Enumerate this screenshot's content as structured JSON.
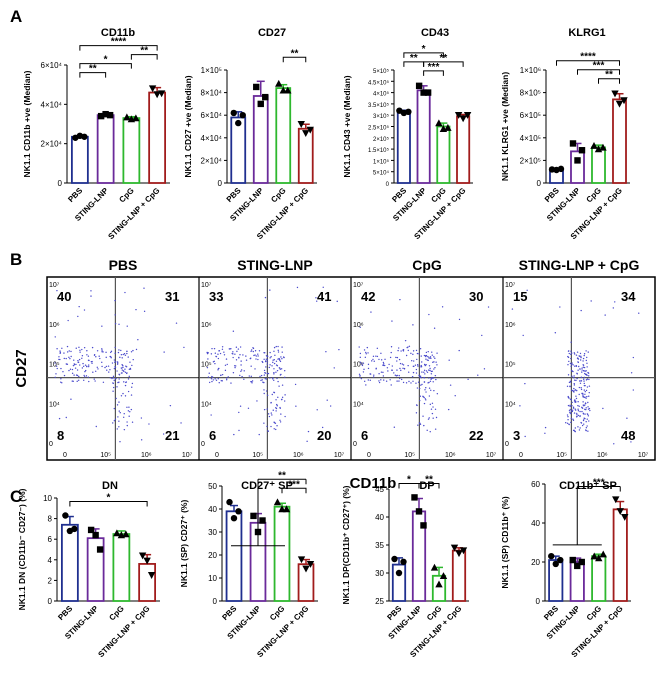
{
  "colors": {
    "PBS": "#1f2f8f",
    "STING-LNP": "#6a2a9a",
    "CpG": "#2eb82e",
    "STING-LNP + CpG": "#a11c1c",
    "dot_quad": "#4a4acc",
    "quad_dark": "#1a2a5a",
    "quad_red": "#a11c1c"
  },
  "groups": [
    "PBS",
    "STING-LNP",
    "CpG",
    "STING-LNP + CpG"
  ],
  "panel_labels": {
    "a": "A",
    "b": "B",
    "c": "C"
  },
  "chart_data": [
    {
      "type": "bar",
      "id": "A1",
      "title": "CD11b",
      "ylabel": "NK1.1 CD11b +ve (Median)",
      "ylim": [
        0,
        60000
      ],
      "ticks": [
        "0",
        "2×10⁴",
        "4×10⁴",
        "6×10⁴"
      ],
      "values": [
        23500,
        34500,
        33000,
        46000
      ],
      "errors": [
        500,
        800,
        700,
        2500
      ],
      "points": [
        [
          23000,
          24000,
          23500
        ],
        [
          34000,
          35000,
          34500
        ],
        [
          33500,
          32500,
          33000
        ],
        [
          48000,
          45000,
          45500
        ]
      ],
      "sig": [
        {
          "a": 0,
          "b": 1,
          "label": "**",
          "level": 1
        },
        {
          "a": 0,
          "b": 2,
          "label": "*",
          "level": 2
        },
        {
          "a": 2,
          "b": 3,
          "label": "**",
          "level": 3
        },
        {
          "a": 0,
          "b": 3,
          "label": "****",
          "level": 4
        }
      ]
    },
    {
      "type": "bar",
      "id": "A2",
      "title": "CD27",
      "ylabel": "NK1.1 CD27 +ve (Median)",
      "ylim": [
        0,
        100000
      ],
      "ticks": [
        "0",
        "2×10⁴",
        "4×10⁴",
        "6×10⁴",
        "8×10⁴",
        "1×10⁵"
      ],
      "values": [
        58000,
        77000,
        84000,
        48000
      ],
      "errors": [
        5000,
        13000,
        3000,
        4000
      ],
      "points": [
        [
          62000,
          53000,
          60000
        ],
        [
          85000,
          70000,
          76000
        ],
        [
          88000,
          82000,
          82000
        ],
        [
          52000,
          44000,
          47000
        ]
      ],
      "sig": [
        {
          "a": 2,
          "b": 3,
          "label": "**",
          "level": 2
        }
      ]
    },
    {
      "type": "bar",
      "id": "A3",
      "title": "CD43",
      "ylabel": "NK1.1 CD43 +ve (Median)",
      "ylim": [
        0,
        500000
      ],
      "ticks": [
        "0",
        "5×10⁴",
        "1×10⁵",
        "1.5×10⁵",
        "2×10⁵",
        "2.5×10⁵",
        "3×10⁵",
        "3.5×10⁵",
        "4×10⁵",
        "4.5×10⁵",
        "5×10⁵"
      ],
      "values": [
        315000,
        410000,
        250000,
        295000
      ],
      "errors": [
        7000,
        20000,
        15000,
        8000
      ],
      "points": [
        [
          320000,
          310000,
          315000
        ],
        [
          430000,
          400000,
          400000
        ],
        [
          265000,
          240000,
          245000
        ],
        [
          300000,
          285000,
          300000
        ]
      ],
      "sig": [
        {
          "a": 1,
          "b": 2,
          "label": "***",
          "level": 1
        },
        {
          "a": 0,
          "b": 1,
          "label": "**",
          "level": 2
        },
        {
          "a": 1,
          "b": 3,
          "label": "**",
          "level": 2
        },
        {
          "a": 0,
          "b": 2,
          "label": "*",
          "level": 3
        }
      ]
    },
    {
      "type": "bar",
      "id": "A4",
      "title": "KLRG1",
      "ylabel": "NK1.1 KLRG1 +ve (Median)",
      "ylim": [
        0,
        1000000
      ],
      "ticks": [
        "0",
        "2×10⁵",
        "4×10⁵",
        "6×10⁵",
        "8×10⁵",
        "1×10⁶"
      ],
      "values": [
        120000,
        280000,
        315000,
        740000
      ],
      "errors": [
        10000,
        70000,
        20000,
        50000
      ],
      "points": [
        [
          120000,
          115000,
          125000
        ],
        [
          350000,
          200000,
          290000
        ],
        [
          330000,
          300000,
          315000
        ],
        [
          790000,
          700000,
          730000
        ]
      ],
      "sig": [
        {
          "a": 2,
          "b": 3,
          "label": "**",
          "level": 1
        },
        {
          "a": 1,
          "b": 3,
          "label": "***",
          "level": 2
        },
        {
          "a": 0,
          "b": 3,
          "label": "****",
          "level": 3
        }
      ]
    },
    {
      "type": "scatter",
      "id": "B",
      "xlabel": "CD11b",
      "ylabel": "CD27",
      "panels": [
        {
          "title": "PBS",
          "q": [
            "40",
            "31",
            "8",
            "21"
          ]
        },
        {
          "title": "STING-LNP",
          "q": [
            "33",
            "41",
            "6",
            "20"
          ]
        },
        {
          "title": "CpG",
          "q": [
            "42",
            "30",
            "6",
            "22"
          ]
        },
        {
          "title": "STING-LNP + CpG",
          "q": [
            "15",
            "34",
            "3",
            "48"
          ]
        }
      ],
      "yticks": [
        "10⁷",
        "10⁶",
        "10⁵",
        "10⁴",
        "0"
      ],
      "xticks": [
        "0",
        "10⁵",
        "10⁶",
        "10⁷"
      ]
    },
    {
      "type": "bar",
      "id": "C1",
      "title": "DN",
      "ylabel": "NK1.1 DN (CD11b⁻ CD27⁻) (%)",
      "ylim": [
        0,
        10
      ],
      "ticks": [
        "0",
        "2",
        "4",
        "6",
        "8",
        "10"
      ],
      "values": [
        7.4,
        6.1,
        6.5,
        3.6
      ],
      "errors": [
        0.8,
        0.9,
        0.3,
        0.9
      ],
      "points": [
        [
          8.3,
          6.8,
          7.0
        ],
        [
          6.9,
          6.4,
          5.0
        ],
        [
          6.6,
          6.4,
          6.5
        ],
        [
          4.4,
          3.9,
          2.5
        ]
      ],
      "sig": [
        {
          "a": 0,
          "b": 3,
          "label": "*",
          "level": 1
        }
      ]
    },
    {
      "type": "bar",
      "id": "C2",
      "title": "CD27⁺ SP",
      "ylabel": "NK1.1 (SP) CD27⁺ (%)",
      "ylim": [
        0,
        50
      ],
      "ticks": [
        "0",
        "10",
        "20",
        "30",
        "40",
        "50"
      ],
      "values": [
        39,
        34,
        41,
        16
      ],
      "errors": [
        2.5,
        4,
        1.5,
        2
      ],
      "points": [
        [
          43,
          36,
          39
        ],
        [
          37,
          30,
          35
        ],
        [
          43,
          40,
          40
        ],
        [
          18,
          14,
          16
        ]
      ],
      "sig": [
        {
          "a": 2,
          "b": 3,
          "label": "***",
          "level": 1
        },
        {
          "a": -1,
          "b": 3,
          "label": "**",
          "level": 2
        }
      ]
    },
    {
      "type": "bar",
      "id": "C3",
      "title": "DP",
      "ylabel": "NK1.1 DP(CD11b⁺ CD27⁺) (%)",
      "ylim": [
        25,
        45
      ],
      "ticks": [
        "25",
        "30",
        "35",
        "40",
        "45"
      ],
      "values": [
        31.5,
        41,
        29.5,
        34
      ],
      "errors": [
        1.2,
        2.3,
        1.5,
        0.5
      ],
      "points": [
        [
          32.5,
          30,
          32
        ],
        [
          43.5,
          41,
          38.5
        ],
        [
          31,
          28,
          29.5
        ],
        [
          34.5,
          33.5,
          34
        ]
      ],
      "sig": [
        {
          "a": 0,
          "b": 1,
          "label": "*",
          "level": 1
        },
        {
          "a": 1,
          "b": 2,
          "label": "**",
          "level": 1
        }
      ]
    },
    {
      "type": "bar",
      "id": "C4",
      "title": "CD11b⁺ SP",
      "ylabel": "NK1.1 (SP) CD11b⁺ (%)",
      "ylim": [
        0,
        60
      ],
      "ticks": [
        "0",
        "20",
        "40",
        "60"
      ],
      "values": [
        21,
        20,
        23,
        47
      ],
      "errors": [
        2,
        2,
        1,
        4
      ],
      "points": [
        [
          23,
          19,
          21
        ],
        [
          21,
          18,
          20
        ],
        [
          23,
          22,
          24
        ],
        [
          52,
          46,
          43
        ]
      ],
      "sig": [
        {
          "a": -1,
          "b": 3,
          "label": "***",
          "level": 1
        }
      ]
    }
  ]
}
